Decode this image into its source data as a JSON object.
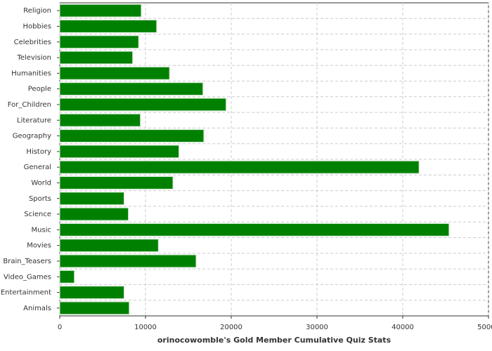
{
  "chart_data": {
    "type": "bar",
    "orientation": "horizontal",
    "x_label": "orinocowomble's Gold Member Cumulative Quiz Stats",
    "categories": [
      "Religion",
      "Hobbies",
      "Celebrities",
      "Television",
      "Humanities",
      "People",
      "For_Children",
      "Literature",
      "Geography",
      "History",
      "General",
      "World",
      "Sports",
      "Science",
      "Music",
      "Movies",
      "Brain_Teasers",
      "Video_Games",
      "Entertainment",
      "Animals"
    ],
    "values": [
      9500,
      11300,
      9200,
      8500,
      12800,
      16700,
      19400,
      9400,
      16800,
      13900,
      41900,
      13200,
      7500,
      8000,
      45400,
      11500,
      15900,
      1700,
      7500,
      8100
    ],
    "color": "#008000",
    "xlim": [
      0,
      50000
    ],
    "xticks": [
      0,
      10000,
      20000,
      30000,
      40000,
      50000
    ],
    "grid": true
  }
}
